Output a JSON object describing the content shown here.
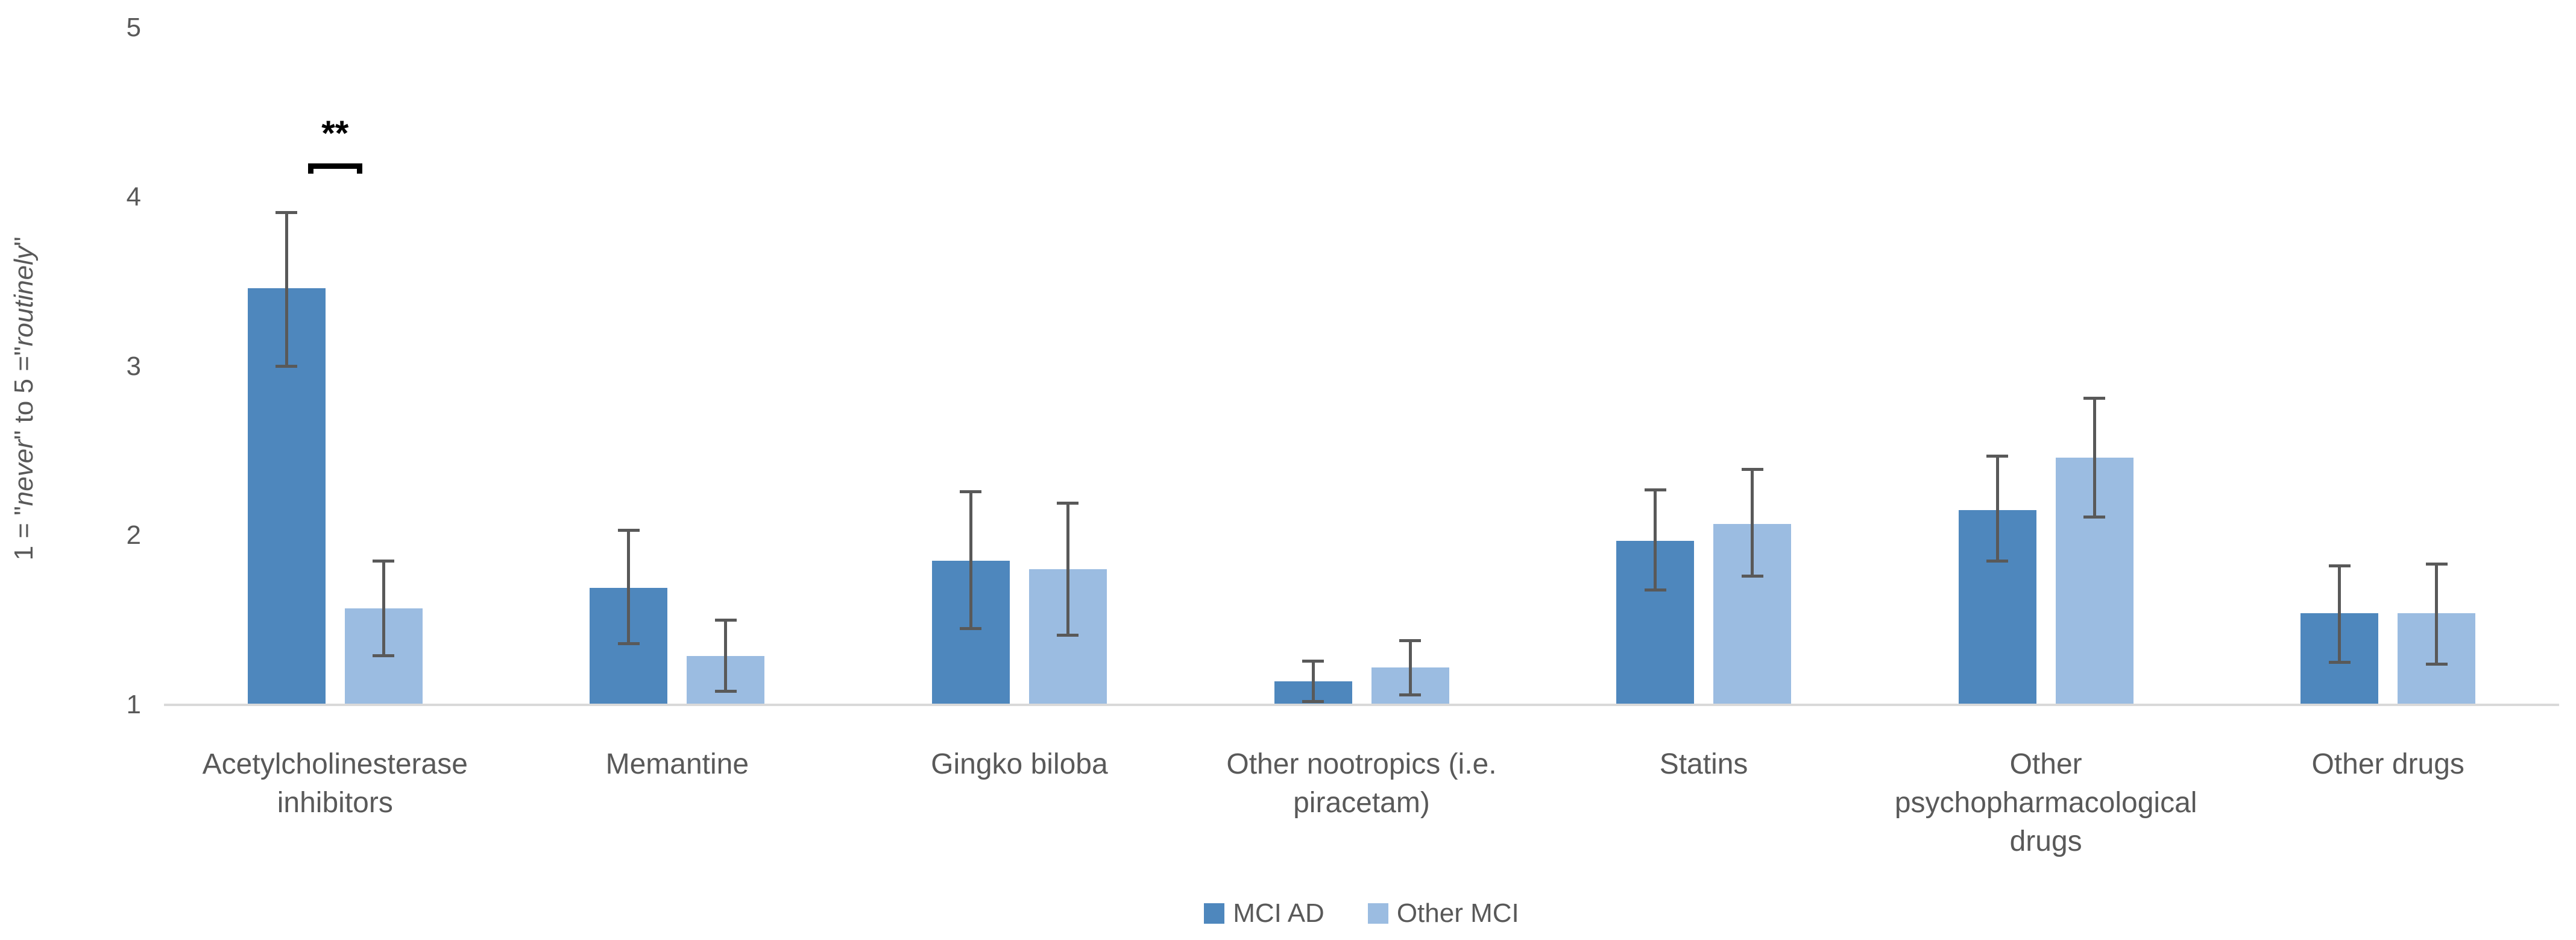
{
  "chart_data": {
    "type": "bar",
    "title": "",
    "ylabel_segments": [
      {
        "text": "1 = \"",
        "italic": false
      },
      {
        "text": "never",
        "italic": true
      },
      {
        "text": "\" to 5 =\"",
        "italic": false
      },
      {
        "text": "routinely",
        "italic": true
      },
      {
        "text": "\"",
        "italic": false
      }
    ],
    "ylim": [
      1,
      5
    ],
    "yticks": [
      5,
      4,
      3,
      2,
      1
    ],
    "grid": false,
    "legend_position": "bottom-center",
    "categories": [
      "Acetylcholinesterase inhibitors",
      "Memantine",
      "Gingko biloba",
      "Other nootropics (i.e. piracetam)",
      "Statins",
      "Other psychopharmacological drugs",
      "Other drugs"
    ],
    "category_label_lines": [
      [
        "Acetylcholinesterase",
        "inhibitors"
      ],
      [
        "Memantine"
      ],
      [
        "Gingko biloba"
      ],
      [
        "Other nootropics (i.e.",
        "piracetam)"
      ],
      [
        "Statins"
      ],
      [
        "Other",
        "psychopharmacological",
        "drugs"
      ],
      [
        "Other drugs"
      ]
    ],
    "series": [
      {
        "name": "MCI AD",
        "color": "#4e87bd",
        "values": [
          3.46,
          1.69,
          1.85,
          1.14,
          1.97,
          2.15,
          1.54
        ],
        "error_low": [
          3.0,
          1.36,
          1.45,
          1.02,
          1.68,
          1.85,
          1.25
        ],
        "error_high": [
          3.91,
          2.03,
          2.26,
          1.26,
          2.27,
          2.47,
          1.82
        ]
      },
      {
        "name": "Other MCI",
        "color": "#9bbce1",
        "values": [
          1.57,
          1.29,
          1.8,
          1.22,
          2.07,
          2.46,
          1.54
        ],
        "error_low": [
          1.29,
          1.08,
          1.41,
          1.06,
          1.76,
          2.11,
          1.24
        ],
        "error_high": [
          1.85,
          1.5,
          2.19,
          1.38,
          2.39,
          2.81,
          1.83
        ]
      }
    ],
    "significance": [
      {
        "category_index": 0,
        "label": "**"
      }
    ],
    "style": {
      "axis_line_color": "#d9d9d9",
      "error_bar_color": "#595959",
      "text_color": "#595959",
      "significance_color": "#000000"
    }
  }
}
